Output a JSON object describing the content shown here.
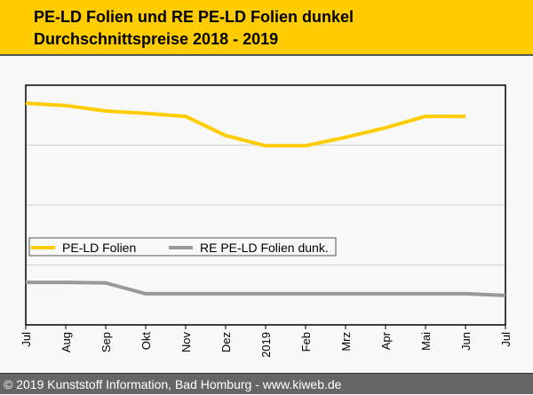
{
  "chart_data": {
    "type": "line",
    "title": "PE-LD Folien und RE PE-LD Folien dunkel",
    "subtitle": "Durchschnittspreise 2018 - 2019",
    "categories": [
      "Jul",
      "Aug",
      "Sep",
      "Okt",
      "Nov",
      "Dez",
      "2019",
      "Feb",
      "Mrz",
      "Apr",
      "Mai",
      "Jun",
      "Jul"
    ],
    "series": [
      {
        "name": "PE-LD Folien",
        "color": "#ffcc00",
        "values": [
          3.7,
          3.66,
          3.57,
          3.53,
          3.48,
          3.16,
          2.99,
          2.99,
          3.13,
          3.29,
          3.48,
          3.48,
          null
        ]
      },
      {
        "name": "RE PE-LD Folien dunk.",
        "color": "#999999",
        "values": [
          0.71,
          0.71,
          0.7,
          0.52,
          0.52,
          0.52,
          0.52,
          0.52,
          0.52,
          0.52,
          0.52,
          0.52,
          0.49
        ]
      }
    ],
    "ylim": [
      0,
      4
    ],
    "grid": true,
    "legend": "center-left",
    "xlabel": "",
    "ylabel": ""
  },
  "footer": "© 2019 Kunststoff Information, Bad Homburg - www.kiweb.de"
}
